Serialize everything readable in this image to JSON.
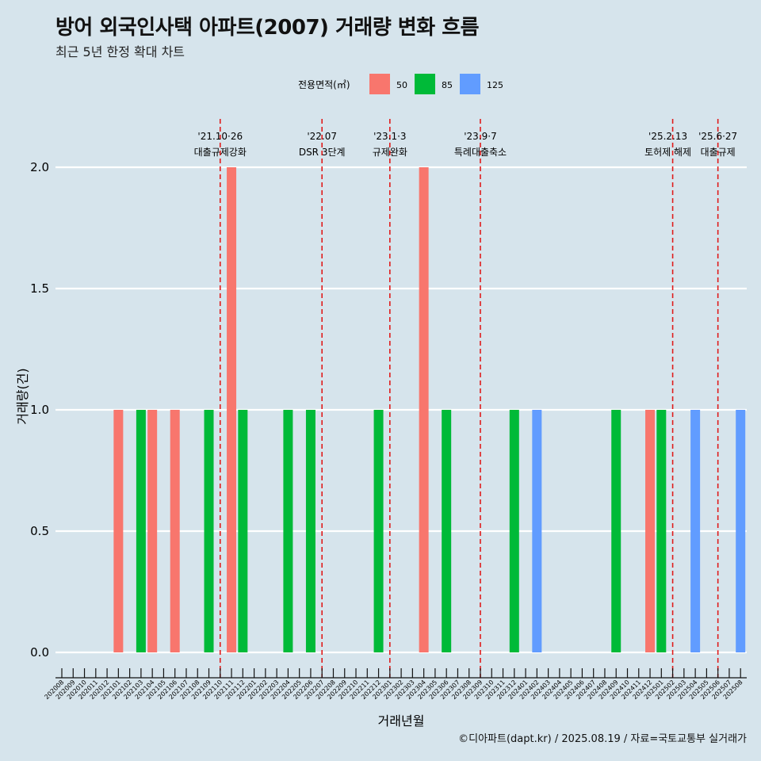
{
  "title": "방어 외국인사택 아파트(2007) 거래량 변화 흐름",
  "subtitle": "최근 5년 한정 확대 차트",
  "caption": "©디아파트(dapt.kr) / 2025.08.19 / 자료=국토교통부 실거래가",
  "colors": {
    "background": "#d6e4ec",
    "grid": "#ffffff",
    "event_line": "#e01b1b",
    "series_50": "#f8766d",
    "series_85": "#00ba38",
    "series_125": "#619cff"
  },
  "chart_data": {
    "type": "bar",
    "xlabel": "거래년월",
    "ylabel": "거래량(건)",
    "ylim": [
      0,
      2
    ],
    "yticks": [
      "0.0",
      "0.5",
      "1.0",
      "1.5",
      "2.0"
    ],
    "grid": "horizontal",
    "legend": {
      "title": "전용면적(㎡)",
      "position": "top",
      "entries": [
        "50",
        "85",
        "125"
      ]
    },
    "categories": [
      "202008",
      "202009",
      "202010",
      "202011",
      "202012",
      "202101",
      "202102",
      "202103",
      "202104",
      "202105",
      "202106",
      "202107",
      "202108",
      "202109",
      "202110",
      "202111",
      "202112",
      "202201",
      "202202",
      "202203",
      "202204",
      "202205",
      "202206",
      "202207",
      "202208",
      "202209",
      "202210",
      "202211",
      "202212",
      "202301",
      "202302",
      "202303",
      "202304",
      "202305",
      "202306",
      "202307",
      "202308",
      "202309",
      "202310",
      "202311",
      "202312",
      "202401",
      "202402",
      "202403",
      "202404",
      "202405",
      "202406",
      "202407",
      "202408",
      "202409",
      "202410",
      "202411",
      "202412",
      "202501",
      "202502",
      "202503",
      "202504",
      "202505",
      "202506",
      "202507",
      "202508"
    ],
    "bars": [
      {
        "x": "202101",
        "series": "50",
        "value": 1
      },
      {
        "x": "202103",
        "series": "85",
        "value": 1
      },
      {
        "x": "202104",
        "series": "50",
        "value": 1
      },
      {
        "x": "202106",
        "series": "50",
        "value": 1
      },
      {
        "x": "202109",
        "series": "85",
        "value": 1
      },
      {
        "x": "202111",
        "series": "50",
        "value": 2
      },
      {
        "x": "202112",
        "series": "85",
        "value": 1
      },
      {
        "x": "202204",
        "series": "85",
        "value": 1
      },
      {
        "x": "202206",
        "series": "85",
        "value": 1
      },
      {
        "x": "202212",
        "series": "85",
        "value": 1
      },
      {
        "x": "202304",
        "series": "50",
        "value": 2
      },
      {
        "x": "202306",
        "series": "85",
        "value": 1
      },
      {
        "x": "202312",
        "series": "85",
        "value": 1
      },
      {
        "x": "202402",
        "series": "125",
        "value": 1
      },
      {
        "x": "202409",
        "series": "85",
        "value": 1
      },
      {
        "x": "202412",
        "series": "50",
        "value": 1
      },
      {
        "x": "202501",
        "series": "85",
        "value": 1
      },
      {
        "x": "202504",
        "series": "125",
        "value": 1
      },
      {
        "x": "202508",
        "series": "125",
        "value": 1
      }
    ],
    "events": [
      {
        "x": "202110",
        "date": "'21.10·26",
        "label": "대출규제강화"
      },
      {
        "x": "202207",
        "date": "'22.07",
        "label": "DSR 3단계"
      },
      {
        "x": "202301",
        "date": "'23.1·3",
        "label": "규제완화"
      },
      {
        "x": "202309",
        "date": "'23.9·7",
        "label": "특례대출축소"
      },
      {
        "x": "202502",
        "date": "'25.2.13",
        "label": "토허제 해제"
      },
      {
        "x": "202506",
        "date": "'25.6·27",
        "label": "대출규제"
      }
    ]
  }
}
